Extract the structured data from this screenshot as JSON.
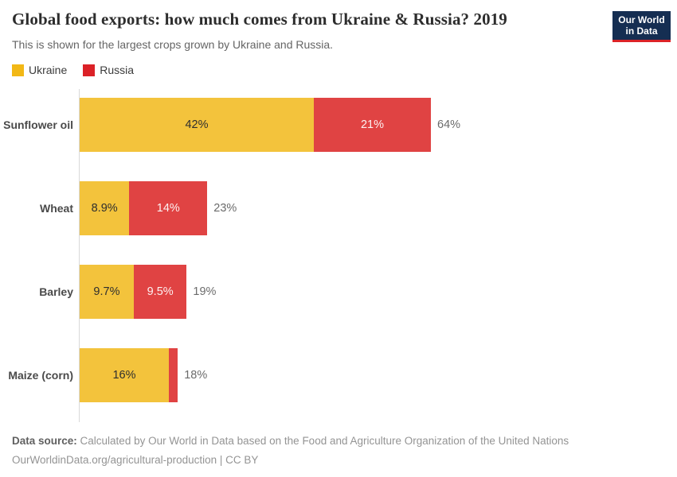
{
  "header": {
    "title": "Global food exports: how much comes from Ukraine & Russia? 2019",
    "subtitle": "This is shown for the largest crops grown by Ukraine and Russia.",
    "logo": {
      "line1": "Our World",
      "line2": "in Data"
    }
  },
  "legend": {
    "items": [
      {
        "label": "Ukraine",
        "color": "#F2B816"
      },
      {
        "label": "Russia",
        "color": "#DB2127"
      }
    ]
  },
  "colors": {
    "ukraine_bar": "#F3C33C",
    "russia_bar": "#E04343",
    "ukraine_legend": "#F2B816",
    "russia_legend": "#DB2127",
    "logo_navy": "#152E52",
    "logo_red": "#DC2327",
    "axis_line": "#D9D9D9"
  },
  "chart_data": {
    "type": "bar",
    "orientation": "horizontal",
    "stacked": true,
    "unit": "%",
    "title": "Global food exports: how much comes from Ukraine & Russia? 2019",
    "subtitle": "This is shown for the largest crops grown by Ukraine and Russia.",
    "legend_position": "top-left",
    "grid": false,
    "xlim": [
      0,
      100
    ],
    "categories": [
      "Sunflower oil",
      "Wheat",
      "Barley",
      "Maize (corn)"
    ],
    "series": [
      {
        "name": "Ukraine",
        "values": [
          42,
          8.9,
          9.7,
          16
        ]
      },
      {
        "name": "Russia",
        "values": [
          21,
          14,
          9.5,
          1.6
        ]
      }
    ],
    "rows": [
      {
        "category": "Sunflower oil",
        "ukraine_value": 42,
        "ukraine_label": "42%",
        "russia_value": 21,
        "russia_label": "21%",
        "total_label": "64%"
      },
      {
        "category": "Wheat",
        "ukraine_value": 8.9,
        "ukraine_label": "8.9%",
        "russia_value": 14,
        "russia_label": "14%",
        "total_label": "23%"
      },
      {
        "category": "Barley",
        "ukraine_value": 9.7,
        "ukraine_label": "9.7%",
        "russia_value": 9.5,
        "russia_label": "9.5%",
        "total_label": "19%"
      },
      {
        "category": "Maize (corn)",
        "ukraine_value": 16,
        "ukraine_label": "16%",
        "russia_value": 1.6,
        "russia_label": "",
        "total_label": "18%"
      }
    ]
  },
  "footer": {
    "source_label": "Data source:",
    "source_text": " Calculated by Our World in Data based on the Food and Agriculture Organization of the United Nations",
    "link_line": "OurWorldinData.org/agricultural-production | CC BY"
  }
}
